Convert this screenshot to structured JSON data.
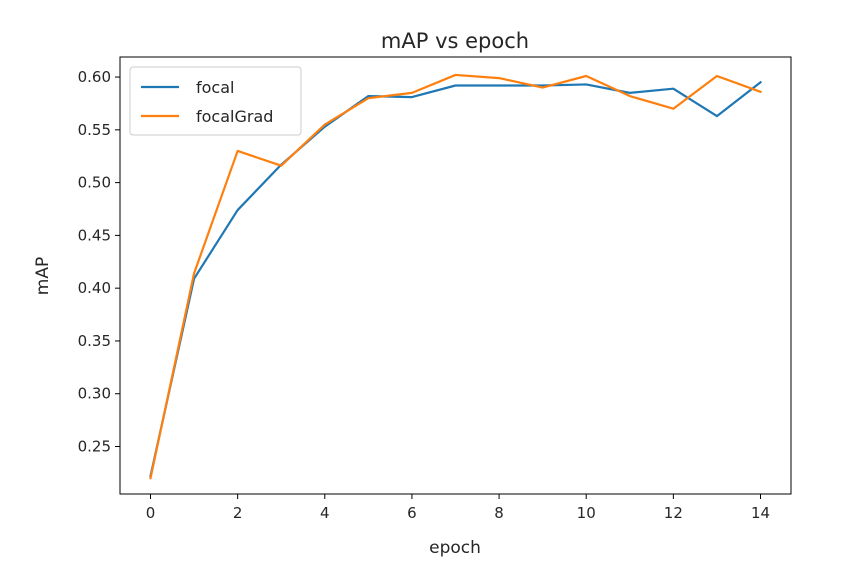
{
  "chart_data": {
    "type": "line",
    "title": "mAP vs epoch",
    "xlabel": "epoch",
    "ylabel": "mAP",
    "xlim": [
      -0.7,
      14.7
    ],
    "ylim": [
      0.205,
      0.619
    ],
    "xticks": [
      0,
      2,
      4,
      6,
      8,
      10,
      12,
      14
    ],
    "xtick_labels": [
      "0",
      "2",
      "4",
      "6",
      "8",
      "10",
      "12",
      "14"
    ],
    "yticks": [
      0.25,
      0.3,
      0.35,
      0.4,
      0.45,
      0.5,
      0.55,
      0.6
    ],
    "ytick_labels": [
      "0.25",
      "0.30",
      "0.35",
      "0.40",
      "0.45",
      "0.50",
      "0.55",
      "0.60"
    ],
    "grid": false,
    "legend_position": "top-left",
    "x": [
      0,
      1,
      2,
      3,
      4,
      5,
      6,
      7,
      8,
      9,
      10,
      11,
      12,
      13,
      14
    ],
    "series": [
      {
        "name": "focal",
        "color": "#1f77b4",
        "values": [
          0.222,
          0.409,
          0.474,
          0.517,
          0.553,
          0.582,
          0.581,
          0.592,
          0.592,
          0.592,
          0.593,
          0.585,
          0.589,
          0.563,
          0.595
        ]
      },
      {
        "name": "focalGrad",
        "color": "#ff7f0e",
        "values": [
          0.22,
          0.414,
          0.53,
          0.516,
          0.555,
          0.58,
          0.585,
          0.602,
          0.599,
          0.59,
          0.601,
          0.582,
          0.57,
          0.601,
          0.586
        ]
      }
    ]
  }
}
